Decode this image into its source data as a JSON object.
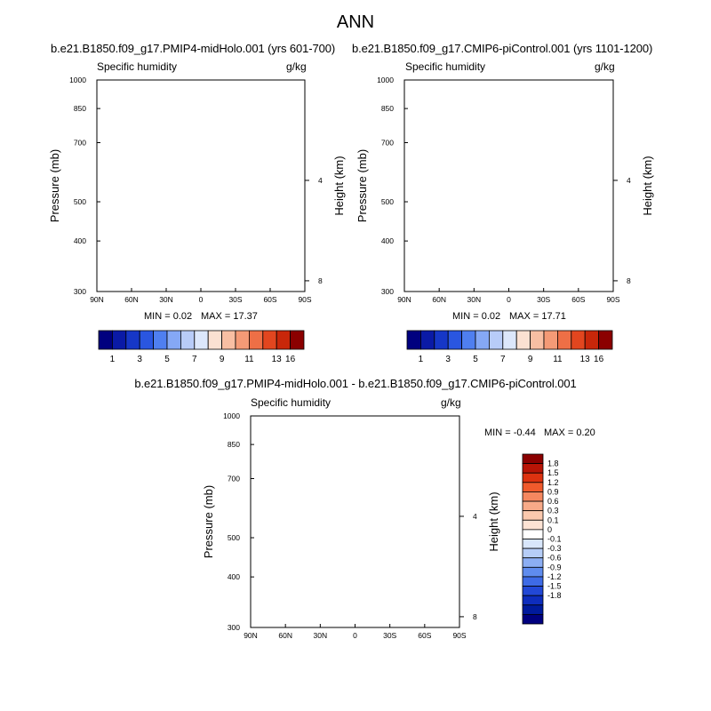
{
  "figure_title": "ANN",
  "panels": [
    {
      "id": "test",
      "title": "b.e21.B1850.f09_g17.PMIP4-midHolo.001 (yrs 601-700)",
      "variable": "Specific humidity",
      "units": "g/kg",
      "min_text": "MIN =   0.02",
      "max_text": "MAX =  17.37"
    },
    {
      "id": "control",
      "title": "b.e21.B1850.f09_g17.CMIP6-piControl.001 (yrs 1101-1200)",
      "variable": "Specific humidity",
      "units": "g/kg",
      "min_text": "MIN =   0.02",
      "max_text": "MAX =  17.71"
    },
    {
      "id": "diff",
      "title": "b.e21.B1850.f09_g17.PMIP4-midHolo.001 - b.e21.B1850.f09_g17.CMIP6-piControl.001",
      "variable": "Specific humidity",
      "units": "g/kg",
      "min_text": "MIN =  -0.44",
      "max_text": "MAX =   0.20"
    }
  ],
  "chart_data": [
    {
      "type": "heatmap",
      "panel": "test",
      "title": "b.e21.B1850.f09_g17.PMIP4-midHolo.001 (yrs 601-700)",
      "subtitle_left": "Specific humidity",
      "subtitle_right": "g/kg",
      "xlabel": "",
      "ylabel": "Pressure (mb)",
      "right_ylabel": "Height (km)",
      "x_range": [
        90,
        -90
      ],
      "x_ticks": [
        90,
        60,
        30,
        0,
        -30,
        -60,
        -90
      ],
      "x_tick_labels": [
        "90N",
        "60N",
        "30N",
        "0",
        "30S",
        "60S",
        "90S"
      ],
      "y_range": [
        1000,
        300
      ],
      "y_ticks": [
        1000,
        850,
        700,
        500,
        400,
        300
      ],
      "y_tick_labels": [
        "1000",
        "850",
        "700",
        "500",
        "400",
        "300"
      ],
      "right_ticks": [
        4,
        8
      ],
      "right_tick_labels": [
        "4",
        "8"
      ],
      "colorbar_levels": [
        "1",
        "3",
        "5",
        "7",
        "9",
        "11",
        "13",
        "16"
      ],
      "min": 0.02,
      "max": 17.37
    },
    {
      "type": "heatmap",
      "panel": "control",
      "title": "b.e21.B1850.f09_g17.CMIP6-piControl.001 (yrs 1101-1200)",
      "subtitle_left": "Specific humidity",
      "subtitle_right": "g/kg",
      "xlabel": "",
      "ylabel": "Pressure (mb)",
      "right_ylabel": "Height (km)",
      "x_range": [
        90,
        -90
      ],
      "x_ticks": [
        90,
        60,
        30,
        0,
        -30,
        -60,
        -90
      ],
      "x_tick_labels": [
        "90N",
        "60N",
        "30N",
        "0",
        "30S",
        "60S",
        "90S"
      ],
      "y_range": [
        1000,
        300
      ],
      "y_ticks": [
        1000,
        850,
        700,
        500,
        400,
        300
      ],
      "y_tick_labels": [
        "1000",
        "850",
        "700",
        "500",
        "400",
        "300"
      ],
      "right_ticks": [
        4,
        8
      ],
      "right_tick_labels": [
        "4",
        "8"
      ],
      "colorbar_levels": [
        "1",
        "3",
        "5",
        "7",
        "9",
        "11",
        "13",
        "16"
      ],
      "min": 0.02,
      "max": 17.71
    },
    {
      "type": "heatmap",
      "panel": "diff",
      "title": "b.e21.B1850.f09_g17.PMIP4-midHolo.001 - b.e21.B1850.f09_g17.CMIP6-piControl.001",
      "subtitle_left": "Specific humidity",
      "subtitle_right": "g/kg",
      "xlabel": "",
      "ylabel": "Pressure (mb)",
      "right_ylabel": "Height (km)",
      "x_range": [
        90,
        -90
      ],
      "x_ticks": [
        90,
        60,
        30,
        0,
        -30,
        -60,
        -90
      ],
      "x_tick_labels": [
        "90N",
        "60N",
        "30N",
        "0",
        "30S",
        "60S",
        "90S"
      ],
      "y_range": [
        1000,
        300
      ],
      "y_ticks": [
        1000,
        850,
        700,
        500,
        400,
        300
      ],
      "y_tick_labels": [
        "1000",
        "850",
        "700",
        "500",
        "400",
        "300"
      ],
      "right_ticks": [
        4,
        8
      ],
      "right_tick_labels": [
        "4",
        "8"
      ],
      "colorbar_levels": [
        "1.8",
        "1.5",
        "1.2",
        "0.9",
        "0.6",
        "0.3",
        "0.1",
        "0",
        "-0.1",
        "-0.3",
        "-0.6",
        "-0.9",
        "-1.2",
        "-1.5",
        "-1.8"
      ],
      "min": -0.44,
      "max": 0.2
    }
  ],
  "colors": {
    "full_scale": [
      "#00007f",
      "#0a1aa6",
      "#1637c7",
      "#2a56e0",
      "#4f7ff0",
      "#85a8f5",
      "#b8ccf8",
      "#dce7fb",
      "#fbe1d2",
      "#f8bfa3",
      "#f49a76",
      "#ee6f46",
      "#e2461f",
      "#c8270a",
      "#8b0000"
    ],
    "diff_scale": [
      "#8b0000",
      "#b81406",
      "#dd3210",
      "#f05a2c",
      "#f5875f",
      "#f8aa88",
      "#fbc9ae",
      "#fde3d4",
      "#ffffff",
      "#d8e6fb",
      "#b6cdf7",
      "#8caef3",
      "#5f8cee",
      "#3e6be6",
      "#2248d6",
      "#0e2dbd",
      "#001a9c",
      "#00007f"
    ]
  }
}
